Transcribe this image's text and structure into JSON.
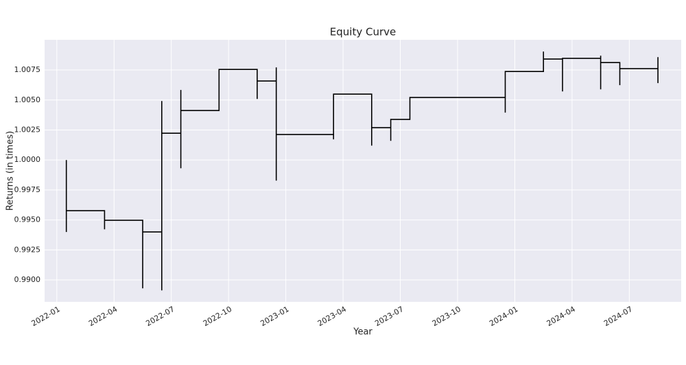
{
  "chart_data": {
    "type": "line",
    "title": "Equity Curve",
    "x_label": "Year",
    "y_label": "Returns (in times)",
    "x": [
      "2022-01",
      "2022-01",
      "2022-01",
      "2022-03",
      "2022-03",
      "2022-03",
      "2022-05",
      "2022-05",
      "2022-05",
      "2022-06",
      "2022-06",
      "2022-06",
      "2022-06",
      "2022-07",
      "2022-07",
      "2022-07",
      "2022-07",
      "2022-09",
      "2022-09",
      "2022-11",
      "2022-11",
      "2022-11",
      "2022-12",
      "2022-12",
      "2022-12",
      "2022-12",
      "2023-03",
      "2023-03",
      "2023-03",
      "2023-05",
      "2023-05",
      "2023-05",
      "2023-06",
      "2023-06",
      "2023-06",
      "2023-07",
      "2023-07",
      "2023-12",
      "2023-12",
      "2023-12",
      "2024-02",
      "2024-02",
      "2024-02",
      "2024-03",
      "2024-03",
      "2024-03",
      "2024-05",
      "2024-05",
      "2024-05",
      "2024-05",
      "2024-06",
      "2024-06",
      "2024-06",
      "2024-08",
      "2024-08",
      "2024-08",
      "2024-08"
    ],
    "series": [
      {
        "name": "Equity",
        "color": "#000000",
        "values": [
          1.0,
          0.994,
          0.99577,
          0.99577,
          0.99422,
          0.99497,
          0.99497,
          0.9893,
          0.994,
          0.994,
          0.98913,
          1.00492,
          1.00223,
          1.00223,
          0.99931,
          1.00584,
          1.00412,
          1.00412,
          1.00755,
          1.00755,
          1.00509,
          1.00658,
          1.00658,
          0.99828,
          1.00772,
          1.00212,
          1.00212,
          1.00172,
          1.00549,
          1.00549,
          1.0012,
          1.00269,
          1.00269,
          1.0016,
          1.00338,
          1.00338,
          1.00521,
          1.00521,
          1.00395,
          1.00738,
          1.00738,
          1.00904,
          1.00841,
          1.00841,
          1.00572,
          1.00847,
          1.00847,
          1.00589,
          1.0087,
          1.00812,
          1.00812,
          1.00624,
          1.00761,
          1.00761,
          1.00641,
          1.00858,
          1.00761
        ]
      }
    ],
    "xlim": [
      "2021-12",
      "2024-09"
    ],
    "xticks": [
      "2022-01",
      "2022-04",
      "2022-07",
      "2022-10",
      "2023-01",
      "2023-04",
      "2023-07",
      "2023-10",
      "2024-01",
      "2024-04",
      "2024-07"
    ],
    "ylim": [
      0.98817,
      1.01002
    ],
    "yticks": [
      {
        "value": 0.99,
        "label": "0.9900"
      },
      {
        "value": 0.9925,
        "label": "0.9925"
      },
      {
        "value": 0.995,
        "label": "0.9950"
      },
      {
        "value": 0.9975,
        "label": "0.9975"
      },
      {
        "value": 1.0,
        "label": "1.0000"
      },
      {
        "value": 1.0025,
        "label": "1.0025"
      },
      {
        "value": 1.005,
        "label": "1.0050"
      },
      {
        "value": 1.0075,
        "label": "1.0075"
      }
    ],
    "grid": true
  }
}
